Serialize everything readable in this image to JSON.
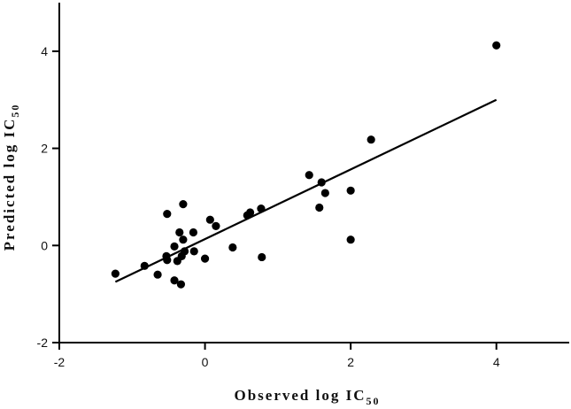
{
  "chart_data": {
    "type": "scatter",
    "xlabel": {
      "main": "Observed log IC",
      "sub": "50"
    },
    "ylabel": {
      "main": "Predicted log IC",
      "sub": "50"
    },
    "xlim": [
      -2,
      5
    ],
    "ylim": [
      -2,
      5
    ],
    "xticks": [
      -2,
      0,
      2,
      4
    ],
    "yticks": [
      -2,
      0,
      2,
      4
    ],
    "grid": false,
    "colors": {
      "points": "#000000",
      "line": "#000000",
      "axes": "#000000"
    },
    "series": [
      {
        "points": [
          [
            -1.23,
            -0.58
          ],
          [
            -0.83,
            -0.42
          ],
          [
            -0.65,
            -0.6
          ],
          [
            -0.52,
            0.65
          ],
          [
            -0.53,
            -0.22
          ],
          [
            -0.52,
            -0.3
          ],
          [
            -0.42,
            -0.02
          ],
          [
            -0.42,
            -0.72
          ],
          [
            -0.38,
            -0.32
          ],
          [
            -0.35,
            0.27
          ],
          [
            -0.33,
            -0.8
          ],
          [
            -0.32,
            -0.22
          ],
          [
            -0.3,
            0.85
          ],
          [
            -0.3,
            0.12
          ],
          [
            -0.28,
            -0.12
          ],
          [
            -0.16,
            0.27
          ],
          [
            -0.15,
            -0.12
          ],
          [
            0.0,
            -0.27
          ],
          [
            0.07,
            0.53
          ],
          [
            0.15,
            0.4
          ],
          [
            0.38,
            -0.04
          ],
          [
            0.58,
            0.62
          ],
          [
            0.62,
            0.68
          ],
          [
            0.77,
            0.76
          ],
          [
            0.78,
            -0.24
          ],
          [
            1.43,
            1.45
          ],
          [
            1.57,
            0.78
          ],
          [
            1.6,
            1.3
          ],
          [
            1.65,
            1.08
          ],
          [
            2.0,
            1.13
          ],
          [
            2.0,
            0.12
          ],
          [
            2.28,
            2.18
          ],
          [
            4.0,
            4.12
          ]
        ]
      }
    ],
    "fit_line": {
      "x": [
        -1.23,
        4.0
      ],
      "y": [
        -0.75,
        3.0
      ]
    }
  }
}
